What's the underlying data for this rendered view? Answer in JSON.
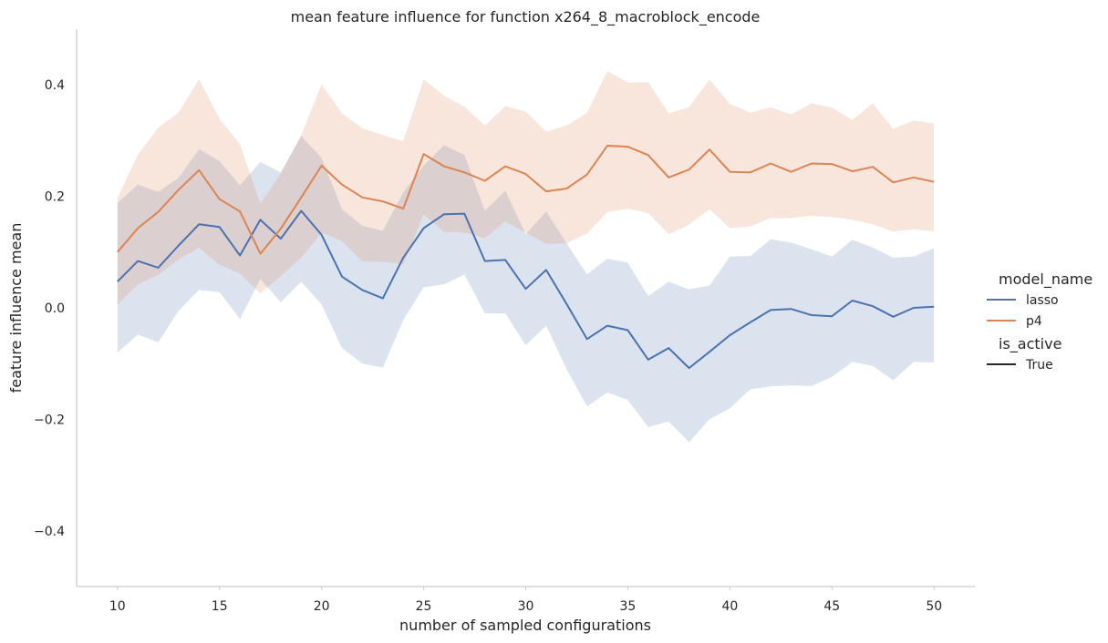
{
  "chart_data": {
    "type": "line",
    "title": "mean feature influence for function x264_8_macroblock_encode",
    "xlabel": "number of sampled configurations",
    "ylabel": "feature influence mean",
    "xlim": [
      8,
      52
    ],
    "ylim": [
      -0.5,
      0.5
    ],
    "xticks": [
      10,
      15,
      20,
      25,
      30,
      35,
      40,
      45,
      50
    ],
    "xtick_labels": [
      "10",
      "15",
      "20",
      "25",
      "30",
      "35",
      "40",
      "45",
      "50"
    ],
    "yticks": [
      -0.4,
      -0.2,
      0.0,
      0.2,
      0.4
    ],
    "ytick_labels": [
      "−0.4",
      "−0.2",
      "0.0",
      "0.2",
      "0.4"
    ],
    "grid": false,
    "legend": {
      "placement": "right",
      "hue_title": "model_name",
      "style_title": "is_active",
      "style_entries": [
        "True"
      ]
    },
    "x": [
      10,
      11,
      12,
      13,
      14,
      15,
      16,
      17,
      18,
      19,
      20,
      21,
      22,
      23,
      24,
      25,
      26,
      27,
      28,
      29,
      30,
      31,
      32,
      33,
      34,
      35,
      36,
      37,
      38,
      39,
      40,
      41,
      42,
      43,
      44,
      45,
      46,
      47,
      48,
      49,
      50
    ],
    "series": [
      {
        "name": "lasso",
        "color": "#4c72b0",
        "values": [
          0.047,
          0.084,
          0.072,
          0.112,
          0.15,
          0.145,
          0.094,
          0.158,
          0.124,
          0.174,
          0.131,
          0.056,
          0.032,
          0.017,
          0.09,
          0.143,
          0.168,
          0.169,
          0.084,
          0.086,
          0.034,
          0.068,
          0.007,
          -0.056,
          -0.032,
          -0.04,
          -0.093,
          -0.072,
          -0.108,
          -0.079,
          -0.049,
          -0.026,
          -0.004,
          -0.002,
          -0.013,
          -0.015,
          0.013,
          0.003,
          -0.016,
          0.0,
          0.002
        ],
        "ci_lower": [
          -0.08,
          -0.048,
          -0.062,
          -0.005,
          0.032,
          0.028,
          -0.02,
          0.052,
          0.01,
          0.047,
          0.006,
          -0.072,
          -0.1,
          -0.107,
          -0.022,
          0.037,
          0.042,
          0.06,
          -0.01,
          -0.01,
          -0.067,
          -0.032,
          -0.11,
          -0.177,
          -0.152,
          -0.165,
          -0.214,
          -0.204,
          -0.241,
          -0.2,
          -0.18,
          -0.146,
          -0.141,
          -0.139,
          -0.14,
          -0.124,
          -0.097,
          -0.104,
          -0.13,
          -0.097,
          -0.098
        ],
        "ci_upper": [
          0.188,
          0.221,
          0.208,
          0.233,
          0.285,
          0.263,
          0.22,
          0.262,
          0.243,
          0.308,
          0.269,
          0.177,
          0.147,
          0.138,
          0.207,
          0.255,
          0.292,
          0.274,
          0.174,
          0.21,
          0.132,
          0.173,
          0.116,
          0.06,
          0.088,
          0.081,
          0.021,
          0.047,
          0.033,
          0.04,
          0.092,
          0.093,
          0.123,
          0.117,
          0.105,
          0.092,
          0.122,
          0.108,
          0.09,
          0.092,
          0.107
        ]
      },
      {
        "name": "p4",
        "color": "#dd8452",
        "values": [
          0.1,
          0.143,
          0.172,
          0.212,
          0.247,
          0.195,
          0.173,
          0.097,
          0.142,
          0.198,
          0.255,
          0.221,
          0.198,
          0.191,
          0.178,
          0.276,
          0.254,
          0.243,
          0.228,
          0.254,
          0.24,
          0.209,
          0.214,
          0.239,
          0.291,
          0.289,
          0.274,
          0.234,
          0.248,
          0.284,
          0.244,
          0.243,
          0.259,
          0.244,
          0.259,
          0.258,
          0.245,
          0.253,
          0.225,
          0.234,
          0.226
        ],
        "ci_lower": [
          0.006,
          0.042,
          0.059,
          0.087,
          0.108,
          0.077,
          0.062,
          0.026,
          0.057,
          0.09,
          0.135,
          0.12,
          0.083,
          0.083,
          0.078,
          0.168,
          0.136,
          0.135,
          0.125,
          0.155,
          0.135,
          0.115,
          0.116,
          0.133,
          0.172,
          0.178,
          0.17,
          0.132,
          0.149,
          0.177,
          0.143,
          0.146,
          0.161,
          0.161,
          0.165,
          0.163,
          0.158,
          0.15,
          0.137,
          0.141,
          0.137
        ],
        "ci_upper": [
          0.197,
          0.275,
          0.323,
          0.351,
          0.41,
          0.339,
          0.294,
          0.187,
          0.241,
          0.31,
          0.401,
          0.349,
          0.322,
          0.31,
          0.299,
          0.41,
          0.38,
          0.361,
          0.327,
          0.362,
          0.352,
          0.316,
          0.327,
          0.35,
          0.425,
          0.404,
          0.405,
          0.349,
          0.36,
          0.41,
          0.366,
          0.35,
          0.36,
          0.347,
          0.367,
          0.359,
          0.337,
          0.367,
          0.321,
          0.336,
          0.331
        ]
      }
    ]
  }
}
